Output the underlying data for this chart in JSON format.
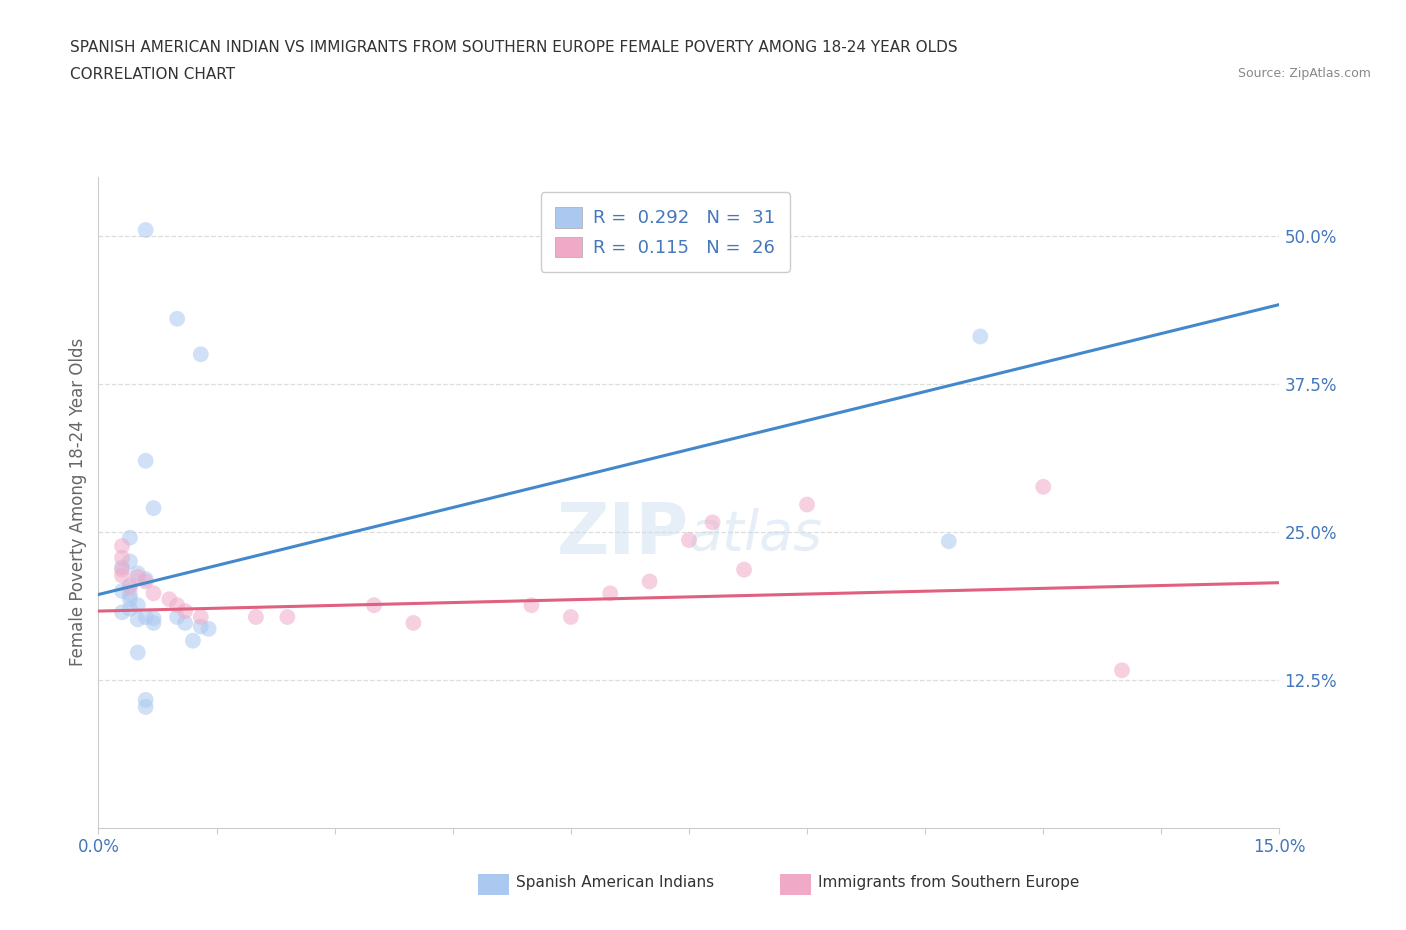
{
  "title": "SPANISH AMERICAN INDIAN VS IMMIGRANTS FROM SOUTHERN EUROPE FEMALE POVERTY AMONG 18-24 YEAR OLDS",
  "subtitle": "CORRELATION CHART",
  "source": "Source: ZipAtlas.com",
  "ylabel_label": "Female Poverty Among 18-24 Year Olds",
  "xlim": [
    0.0,
    0.15
  ],
  "ylim": [
    0.0,
    0.55
  ],
  "yticks": [
    0.125,
    0.25,
    0.375,
    0.5
  ],
  "ytick_labels": [
    "12.5%",
    "25.0%",
    "37.5%",
    "50.0%"
  ],
  "blue_scatter": [
    [
      0.006,
      0.505
    ],
    [
      0.01,
      0.43
    ],
    [
      0.013,
      0.4
    ],
    [
      0.006,
      0.31
    ],
    [
      0.007,
      0.27
    ],
    [
      0.004,
      0.245
    ],
    [
      0.004,
      0.225
    ],
    [
      0.003,
      0.22
    ],
    [
      0.005,
      0.215
    ],
    [
      0.006,
      0.21
    ],
    [
      0.004,
      0.205
    ],
    [
      0.003,
      0.2
    ],
    [
      0.004,
      0.197
    ],
    [
      0.004,
      0.193
    ],
    [
      0.005,
      0.188
    ],
    [
      0.004,
      0.185
    ],
    [
      0.003,
      0.182
    ],
    [
      0.006,
      0.178
    ],
    [
      0.007,
      0.177
    ],
    [
      0.005,
      0.176
    ],
    [
      0.007,
      0.173
    ],
    [
      0.01,
      0.178
    ],
    [
      0.011,
      0.173
    ],
    [
      0.013,
      0.17
    ],
    [
      0.014,
      0.168
    ],
    [
      0.012,
      0.158
    ],
    [
      0.005,
      0.148
    ],
    [
      0.006,
      0.108
    ],
    [
      0.006,
      0.102
    ],
    [
      0.112,
      0.415
    ],
    [
      0.108,
      0.242
    ]
  ],
  "pink_scatter": [
    [
      0.003,
      0.238
    ],
    [
      0.003,
      0.228
    ],
    [
      0.003,
      0.218
    ],
    [
      0.003,
      0.213
    ],
    [
      0.005,
      0.212
    ],
    [
      0.006,
      0.208
    ],
    [
      0.004,
      0.203
    ],
    [
      0.007,
      0.198
    ],
    [
      0.009,
      0.193
    ],
    [
      0.01,
      0.188
    ],
    [
      0.011,
      0.183
    ],
    [
      0.013,
      0.178
    ],
    [
      0.02,
      0.178
    ],
    [
      0.024,
      0.178
    ],
    [
      0.035,
      0.188
    ],
    [
      0.04,
      0.173
    ],
    [
      0.055,
      0.188
    ],
    [
      0.06,
      0.178
    ],
    [
      0.065,
      0.198
    ],
    [
      0.07,
      0.208
    ],
    [
      0.075,
      0.243
    ],
    [
      0.078,
      0.258
    ],
    [
      0.082,
      0.218
    ],
    [
      0.09,
      0.273
    ],
    [
      0.12,
      0.288
    ],
    [
      0.13,
      0.133
    ]
  ],
  "blue_line_x": [
    0.0,
    0.15
  ],
  "blue_line_y": [
    0.197,
    0.442
  ],
  "pink_line_x": [
    0.0,
    0.15
  ],
  "pink_line_y": [
    0.183,
    0.207
  ],
  "R_blue": "0.292",
  "N_blue": "31",
  "R_pink": "0.115",
  "N_pink": "26",
  "blue_color": "#aac8f0",
  "pink_color": "#f0aac8",
  "blue_line_color": "#4488cc",
  "pink_line_color": "#e06080",
  "scatter_size": 130,
  "alpha": 0.55,
  "legend_label_blue": "Spanish American Indians",
  "legend_label_pink": "Immigrants from Southern Europe",
  "watermark_zip": "ZIP",
  "watermark_atlas": "atlas",
  "background_color": "#ffffff",
  "grid_color": "#dddddd"
}
